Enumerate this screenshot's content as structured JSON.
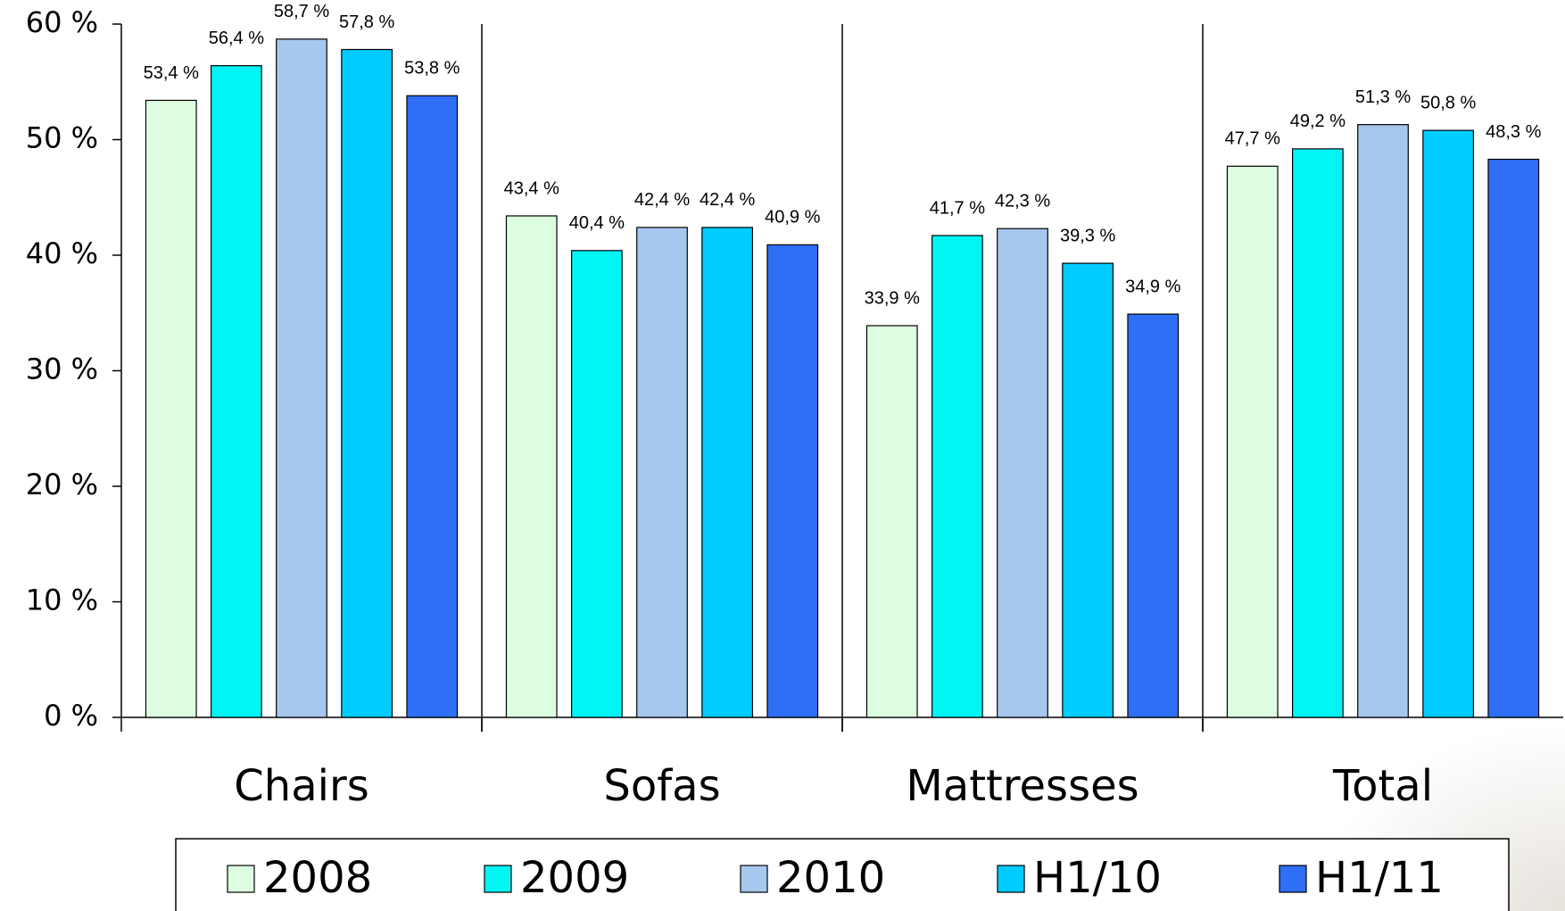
{
  "chart_data": {
    "type": "bar",
    "categories": [
      "Chairs",
      "Sofas",
      "Mattresses",
      "Total"
    ],
    "series": [
      {
        "name": "2008",
        "color": "#ddfde0",
        "values": [
          53.4,
          43.4,
          33.9,
          47.7
        ],
        "value_labels": [
          "53,4 %",
          "43,4 %",
          "33,9 %",
          "47,7 %"
        ]
      },
      {
        "name": "2009",
        "color": "#00f5f5",
        "values": [
          56.4,
          40.4,
          41.7,
          49.2
        ],
        "value_labels": [
          "56,4 %",
          "40,4 %",
          "41,7 %",
          "49,2 %"
        ]
      },
      {
        "name": "2010",
        "color": "#a6c8ef",
        "values": [
          58.7,
          42.4,
          42.3,
          51.3
        ],
        "value_labels": [
          "58,7 %",
          "42,4 %",
          "42,3 %",
          "51,3 %"
        ]
      },
      {
        "name": "H1/10",
        "color": "#00ccff",
        "values": [
          57.8,
          42.4,
          39.3,
          50.8
        ],
        "value_labels": [
          "57,8 %",
          "42,4 %",
          "39,3 %",
          "50,8 %"
        ]
      },
      {
        "name": "H1/11",
        "color": "#2f6ff5",
        "values": [
          53.8,
          40.9,
          34.9,
          48.3
        ],
        "value_labels": [
          "53,8 %",
          "40,9 %",
          "34,9 %",
          "48,3 %"
        ]
      }
    ],
    "ylim": [
      0,
      60
    ],
    "yticks": [
      {
        "value": 0,
        "label": "0 %"
      },
      {
        "value": 10,
        "label": "10 %"
      },
      {
        "value": 20,
        "label": "20 %"
      },
      {
        "value": 30,
        "label": "30 %"
      },
      {
        "value": 40,
        "label": "40 %"
      },
      {
        "value": 50,
        "label": "50 %"
      },
      {
        "value": 60,
        "label": "60 %"
      }
    ],
    "legend": "bottom"
  }
}
